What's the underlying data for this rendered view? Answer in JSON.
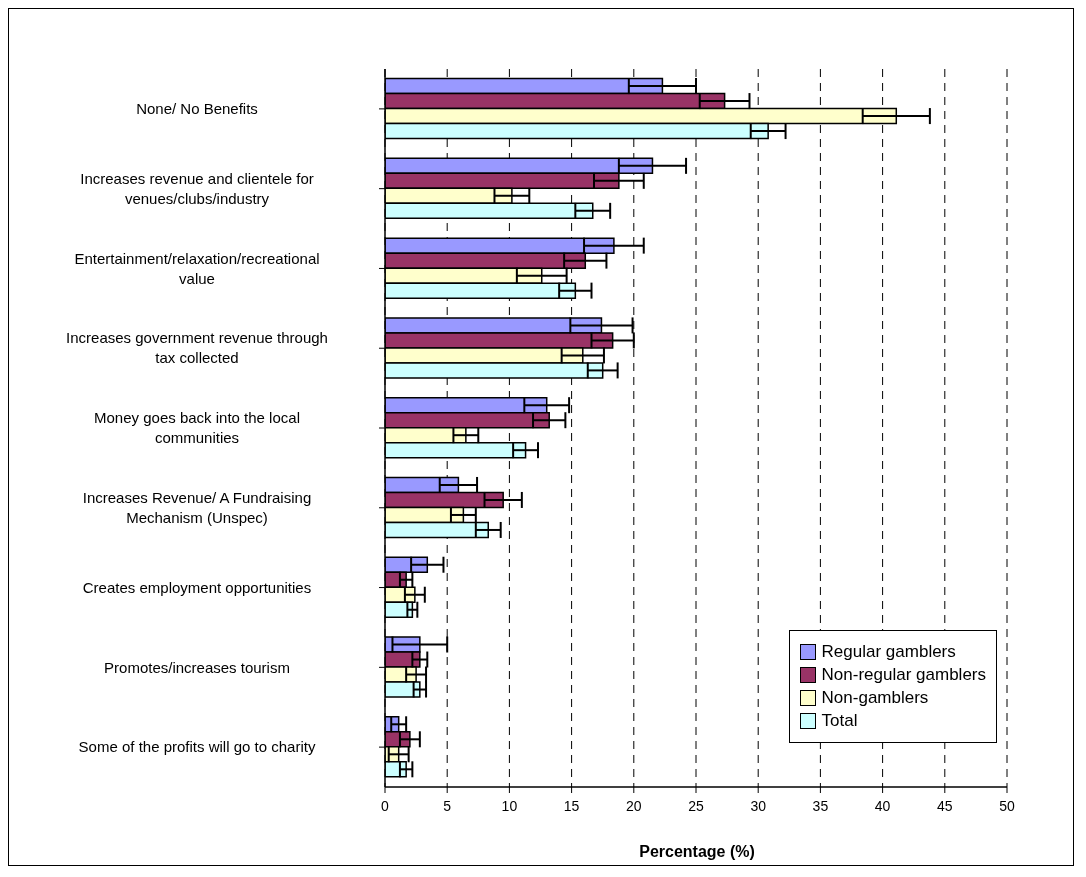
{
  "chart_data": {
    "type": "bar",
    "orientation": "horizontal",
    "xlabel": "Percentage (%)",
    "categories": [
      "None/ No Benefits",
      "Increases revenue and clientele for venues/clubs/industry",
      "Entertainment/relaxation/recreational value",
      "Increases government revenue through tax collected",
      "Money goes back into the local communities",
      "Increases Revenue/ A Fundraising Mechanism (Unspec)",
      "Creates employment opportunities",
      "Promotes/increases tourism",
      "Some of the profits will go to charity"
    ],
    "series": [
      {
        "name": "Regular gamblers",
        "color": "#9999ff",
        "values": [
          22.3,
          21.5,
          18.4,
          17.4,
          13,
          5.9,
          3.4,
          2.8,
          1.1
        ],
        "errors": [
          2.7,
          2.7,
          2.4,
          2.5,
          1.8,
          1.5,
          1.3,
          2.2,
          0.6
        ]
      },
      {
        "name": "Non-regular gamblers",
        "color": "#993366",
        "values": [
          27.3,
          18.8,
          16.1,
          18.3,
          13.2,
          9.5,
          1.7,
          2.8,
          2
        ],
        "errors": [
          2,
          2,
          1.7,
          1.7,
          1.3,
          1.5,
          0.5,
          0.6,
          0.8
        ]
      },
      {
        "name": "Non-gamblers",
        "color": "#ffffcc",
        "values": [
          41.1,
          10.2,
          12.6,
          15.9,
          6.5,
          6.3,
          2.4,
          2.5,
          1.1
        ],
        "errors": [
          2.7,
          1.4,
          2,
          1.7,
          1,
          1,
          0.8,
          0.8,
          0.8
        ]
      },
      {
        "name": "Total",
        "color": "#ccffff",
        "values": [
          30.8,
          16.7,
          15.3,
          17.5,
          11.3,
          8.3,
          2.2,
          2.8,
          1.7
        ],
        "errors": [
          1.4,
          1.4,
          1.3,
          1.2,
          1,
          1,
          0.4,
          0.5,
          0.5
        ]
      }
    ],
    "xlim": [
      0,
      50
    ],
    "xticks": [
      0,
      5,
      10,
      15,
      20,
      25,
      30,
      35,
      40,
      45,
      50
    ],
    "grid": "x",
    "legend": "bottom right"
  }
}
